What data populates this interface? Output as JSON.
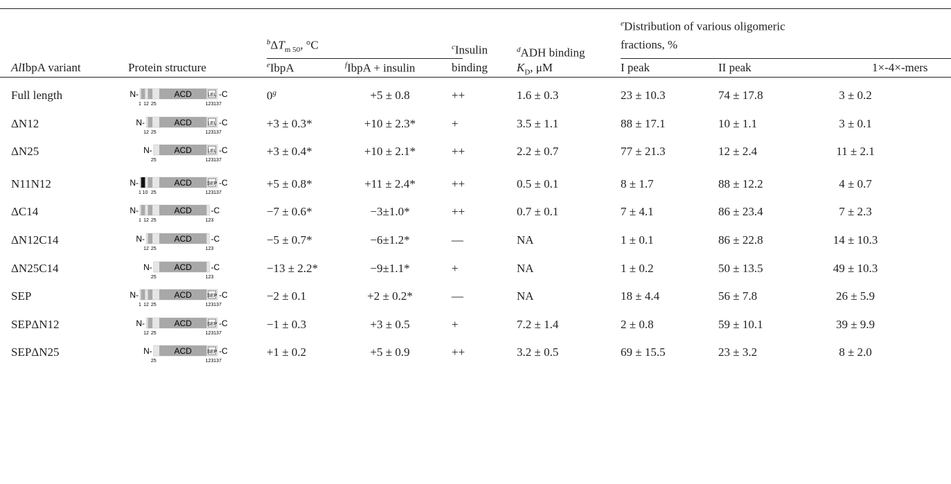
{
  "header": {
    "variant": {
      "italic": "Al",
      "text": "IbpA variant"
    },
    "structure": "Protein structure",
    "dtm": {
      "sup": "b",
      "delta": "Δ",
      "t": "T",
      "sub": "m 50",
      "after": ", °C"
    },
    "ibpa": {
      "sup": "e",
      "text": "IbpA"
    },
    "ibpa_ins": {
      "sup": "f",
      "text": "IbpA + insulin"
    },
    "insulin": {
      "sup": "c",
      "line1": "Insulin",
      "line2": "binding"
    },
    "adh": {
      "sup": "d",
      "line1": "ADH binding",
      "k": "K",
      "sub": "D",
      "after": ", μM"
    },
    "dist": {
      "sup": "e",
      "line1": "Distribution of various oligomeric",
      "line2": "fractions, %"
    },
    "peak1": "I peak",
    "peak2": "II peak",
    "mers": "1×-4×-mers"
  },
  "rows": [
    {
      "variant": "Full length",
      "structure": {
        "n": "N-",
        "domain": "ACD",
        "tag": "LEL",
        "c": "-C",
        "ticks": [
          1,
          12,
          25,
          123,
          137
        ]
      },
      "cells": [
        {
          "text": "0",
          "sup": "g"
        },
        "+5 ± 0.8",
        "++",
        "1.6 ± 0.3",
        "23 ± 10.3",
        "74 ± 17.8",
        "3 ± 0.2"
      ]
    },
    {
      "variant": "ΔN12",
      "structure": {
        "n": "N-",
        "domain": "ACD",
        "tag": "LEL",
        "c": "-C",
        "ticks": [
          12,
          25,
          123,
          137
        ]
      },
      "cells": [
        "+3 ± 0.3*",
        "+10 ± 2.3*",
        "+",
        "3.5 ± 1.1",
        "88 ± 17.1",
        "10 ± 1.1",
        "3 ± 0.1"
      ]
    },
    {
      "variant": "ΔN25",
      "structure": {
        "n": "N-",
        "domain": "ACD",
        "tag": "LEL",
        "c": "-C",
        "ticks": [
          25,
          123,
          137
        ]
      },
      "cells": [
        "+3 ± 0.4*",
        "+10 ± 2.1*",
        "++",
        "2.2 ± 0.7",
        "77 ± 21.3",
        "12 ± 2.4",
        "11 ± 2.1"
      ]
    },
    {
      "variant": "N11N12",
      "structure": {
        "n": "N-",
        "domain": "ACD",
        "tag": "SEP",
        "c": "-C",
        "ticks": [
          1,
          10,
          25,
          123,
          137
        ]
      },
      "cells": [
        "+5 ± 0.8*",
        "+11 ± 2.4*",
        "++",
        "0.5 ± 0.1",
        "8 ± 1.7",
        "88 ± 12.2",
        "4 ± 0.7"
      ]
    },
    {
      "variant": "ΔC14",
      "structure": {
        "n": "N-",
        "domain": "ACD",
        "c": "-C",
        "ticks": [
          1,
          12,
          25,
          123
        ]
      },
      "cells": [
        "−7 ± 0.6*",
        "−3±1.0*",
        "++",
        "0.7 ± 0.1",
        "7 ± 4.1",
        "86 ± 23.4",
        "7 ± 2.3"
      ]
    },
    {
      "variant": "ΔN12C14",
      "structure": {
        "n": "N-",
        "domain": "ACD",
        "c": "-C",
        "ticks": [
          12,
          25,
          123
        ]
      },
      "cells": [
        "−5 ± 0.7*",
        "−6±1.2*",
        "—",
        "NA",
        "1 ± 0.1",
        "86 ± 22.8",
        "14 ± 10.3"
      ]
    },
    {
      "variant": "ΔN25C14",
      "structure": {
        "n": "N-",
        "domain": "ACD",
        "c": "-C",
        "ticks": [
          25,
          123
        ]
      },
      "cells": [
        "−13 ± 2.2*",
        "−9±1.1*",
        "+",
        "NA",
        "1 ± 0.2",
        "50 ± 13.5",
        "49 ± 10.3"
      ]
    },
    {
      "variant": "SEP",
      "structure": {
        "n": "N-",
        "domain": "ACD",
        "tag": "SEP",
        "c": "-C",
        "ticks": [
          1,
          12,
          25,
          123,
          137
        ]
      },
      "cells": [
        "−2 ± 0.1",
        "+2 ± 0.2*",
        "—",
        "NA",
        "18 ± 4.4",
        "56 ± 7.8",
        "26 ± 5.9"
      ]
    },
    {
      "variant": "SEPΔN12",
      "structure": {
        "n": "N-",
        "domain": "ACD",
        "tag": "SEP",
        "c": "-C",
        "ticks": [
          12,
          25,
          123,
          137
        ]
      },
      "cells": [
        "−1 ± 0.3",
        "+3 ± 0.5",
        "+",
        "7.2 ± 1.4",
        "2 ± 0.8",
        "59 ± 10.1",
        "39 ± 9.9"
      ]
    },
    {
      "variant": "SEPΔN25",
      "structure": {
        "n": "N-",
        "domain": "ACD",
        "tag": "SEP",
        "c": "-C",
        "ticks": [
          25,
          123,
          137
        ]
      },
      "cells": [
        "+1 ± 0.2",
        "+5 ± 0.9",
        "++",
        "3.2 ± 0.5",
        "69 ± 15.5",
        "23 ± 3.2",
        "8 ± 2.0"
      ]
    }
  ]
}
